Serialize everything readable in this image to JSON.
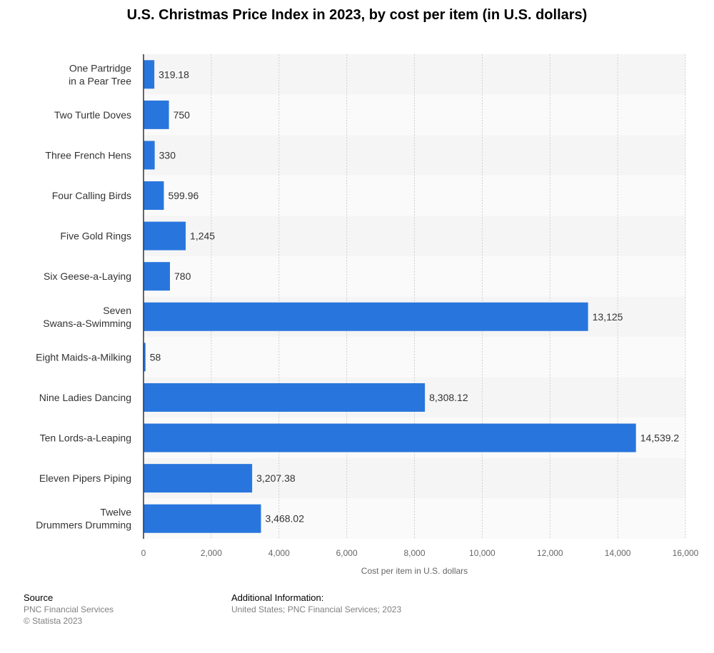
{
  "chart_data": {
    "type": "bar",
    "orientation": "horizontal",
    "title": "U.S. Christmas Price Index in 2023, by cost per item (in U.S. dollars)",
    "xlabel": "Cost per item in U.S. dollars",
    "ylabel": "",
    "xlim": [
      0,
      16000
    ],
    "xticks": [
      0,
      2000,
      4000,
      6000,
      8000,
      10000,
      12000,
      14000,
      16000
    ],
    "xtick_labels": [
      "0",
      "2,000",
      "4,000",
      "6,000",
      "8,000",
      "10,000",
      "12,000",
      "14,000",
      "16,000"
    ],
    "grid": true,
    "bar_color": "#2876dd",
    "categories": [
      [
        "One Partridge",
        "in a Pear Tree"
      ],
      [
        "Two Turtle Doves"
      ],
      [
        "Three French Hens"
      ],
      [
        "Four Calling Birds"
      ],
      [
        "Five Gold Rings"
      ],
      [
        "Six Geese-a-Laying"
      ],
      [
        "Seven",
        "Swans-a-Swimming"
      ],
      [
        "Eight Maids-a-Milking"
      ],
      [
        "Nine Ladies Dancing"
      ],
      [
        "Ten Lords-a-Leaping"
      ],
      [
        "Eleven Pipers Piping"
      ],
      [
        "Twelve",
        "Drummers Drumming"
      ]
    ],
    "values": [
      319.18,
      750,
      330,
      599.96,
      1245,
      780,
      13125,
      58,
      8308.12,
      14539.2,
      3207.38,
      3468.02
    ],
    "value_labels": [
      "319.18",
      "750",
      "330",
      "599.96",
      "1,245",
      "780",
      "13,125",
      "58",
      "8,308.12",
      "14,539.2",
      "3,207.38",
      "3,468.02"
    ]
  },
  "footer": {
    "source_heading": "Source",
    "source_lines": [
      "PNC Financial Services",
      "© Statista 2023"
    ],
    "info_heading": "Additional Information:",
    "info_lines": [
      "United States; PNC Financial Services; 2023"
    ]
  }
}
